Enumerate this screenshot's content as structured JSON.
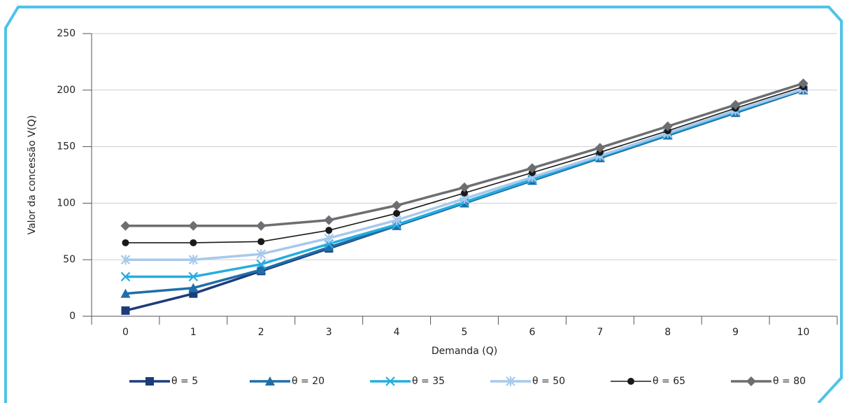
{
  "chart_data": {
    "type": "line",
    "x_label": "Demanda (Q)",
    "y_label": "Valor da concessão  V(Q)",
    "categories": [
      "0",
      "1",
      "2",
      "3",
      "4",
      "5",
      "6",
      "7",
      "8",
      "9",
      "10"
    ],
    "series": [
      {
        "name": "θ = 5",
        "color": "#1c3c7c",
        "marker": "square",
        "values": [
          5,
          20,
          40,
          60,
          80,
          100,
          120,
          140,
          160,
          180,
          200
        ]
      },
      {
        "name": "θ = 20",
        "color": "#1f6ea8",
        "marker": "triangle",
        "values": [
          20,
          25,
          41,
          61,
          80,
          100,
          120,
          140,
          160,
          180,
          200
        ]
      },
      {
        "name": "θ = 35",
        "color": "#26ade0",
        "marker": "x",
        "values": [
          35,
          35,
          46,
          64,
          81,
          101,
          121,
          141,
          161,
          181,
          201
        ]
      },
      {
        "name": "θ = 50",
        "color": "#a7c9ec",
        "marker": "asterisk",
        "values": [
          50,
          50,
          55,
          69,
          85,
          104,
          123,
          142,
          162,
          182,
          201
        ]
      },
      {
        "name": "θ = 65",
        "color": "#1a1a1a",
        "marker": "circle",
        "values": [
          65,
          65,
          66,
          76,
          91,
          109,
          127,
          145,
          164,
          184,
          203
        ]
      },
      {
        "name": "θ = 80",
        "color": "#6d6e71",
        "marker": "diamond",
        "values": [
          80,
          80,
          80,
          85,
          98,
          114,
          131,
          149,
          168,
          187,
          206
        ]
      }
    ],
    "ylim": [
      0,
      250
    ],
    "yticks": [
      0,
      50,
      100,
      150,
      200,
      250
    ],
    "grid": true
  }
}
